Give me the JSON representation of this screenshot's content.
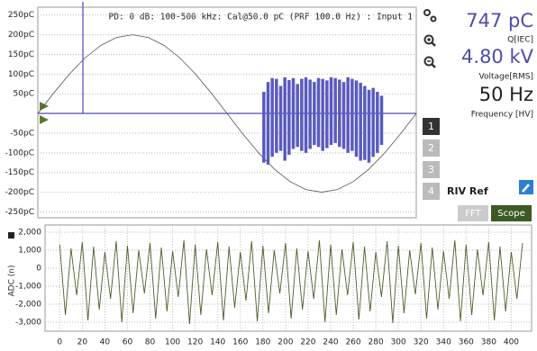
{
  "header": "PD: 0 dB: 100-500 kHz: Cal@50.0 pC (PRF 100.0 Hz) : Input 1",
  "readouts": [
    {
      "value": "747 pC",
      "label": "Q[IEC]"
    },
    {
      "value": "4.80 kV",
      "label": "Voltage[RMS]"
    },
    {
      "value": "50 Hz",
      "label": "Frequency [HV]"
    }
  ],
  "channels": [
    "1",
    "2",
    "3",
    "4"
  ],
  "riv_label": "RIV Ref",
  "buttons": [
    "FFT",
    "Scope"
  ],
  "chart_data": [
    {
      "type": "line",
      "xlim": [
        0,
        360
      ],
      "ylim": [
        -265,
        270
      ],
      "grid": true,
      "yticks": [
        {
          "value": 250,
          "label": "250pC"
        },
        {
          "value": 200,
          "label": "200pC"
        },
        {
          "value": 150,
          "label": "150pC"
        },
        {
          "value": 100,
          "label": "100pC"
        },
        {
          "value": 50,
          "label": "50pC"
        },
        {
          "value": -50,
          "label": "-50pC"
        },
        {
          "value": -100,
          "label": "-100pC"
        },
        {
          "value": -150,
          "label": "-150pC"
        },
        {
          "value": -200,
          "label": "-200pC"
        },
        {
          "value": -250,
          "label": "-250pC"
        }
      ],
      "series": [
        {
          "type": "line",
          "color": "#555555",
          "x": [
            0,
            15,
            30,
            45,
            60,
            75,
            90,
            105,
            120,
            135,
            150,
            165,
            180,
            195,
            210,
            225,
            240,
            255,
            270,
            285,
            300,
            315,
            330,
            345,
            360
          ],
          "values": [
            0,
            51.8,
            100,
            141.4,
            173.2,
            193.2,
            200,
            193.2,
            173.2,
            141.4,
            100,
            51.8,
            0,
            -51.8,
            -100,
            -141.4,
            -173.2,
            -193.2,
            -200,
            -193.2,
            -173.2,
            -141.4,
            -100,
            -51.8,
            0
          ]
        },
        {
          "type": "stem",
          "color": "#5a5ac0",
          "x": [
            215,
            219,
            223,
            227,
            231,
            235,
            239,
            243,
            247,
            251,
            255,
            259,
            263,
            267,
            271,
            275,
            279,
            283,
            287,
            291,
            295,
            299,
            303,
            307,
            311,
            315,
            319,
            323,
            327
          ],
          "values": [
            55,
            80,
            90,
            88,
            70,
            92,
            85,
            90,
            75,
            88,
            92,
            86,
            80,
            90,
            88,
            84,
            92,
            90,
            86,
            80,
            92,
            88,
            84,
            78,
            70,
            60,
            65,
            55,
            45
          ]
        },
        {
          "type": "stem",
          "color": "#5a5ac0",
          "x": [
            215,
            219,
            223,
            227,
            231,
            235,
            239,
            243,
            247,
            251,
            255,
            259,
            263,
            267,
            271,
            275,
            279,
            283,
            287,
            291,
            295,
            299,
            303,
            307,
            311,
            315,
            319,
            323,
            327
          ],
          "values": [
            -125,
            -130,
            -110,
            -100,
            -95,
            -120,
            -105,
            -90,
            -85,
            -95,
            -100,
            -90,
            -80,
            -85,
            -95,
            -88,
            -80,
            -75,
            -85,
            -90,
            -100,
            -95,
            -110,
            -120,
            -118,
            -125,
            -110,
            -100,
            -80
          ]
        }
      ]
    },
    {
      "type": "line",
      "xlim": [
        -13,
        418
      ],
      "ylim": [
        -3500,
        2400
      ],
      "grid": true,
      "ylabel": "ADC (n)",
      "xticks": [
        0,
        20,
        40,
        60,
        80,
        100,
        120,
        140,
        160,
        180,
        200,
        220,
        240,
        260,
        280,
        300,
        320,
        340,
        360,
        380,
        400
      ],
      "yticks": [
        {
          "value": 2000,
          "label": "2,000"
        },
        {
          "value": 1000,
          "label": "1,000"
        },
        0,
        {
          "value": -1000,
          "label": "-1,000"
        },
        {
          "value": -2000,
          "label": "-2,000"
        },
        {
          "value": -3000,
          "label": "-3,000"
        }
      ],
      "series": [
        {
          "type": "line",
          "color": "#4a5e2a",
          "x": [
            0,
            5,
            10,
            15,
            20,
            25,
            30,
            35,
            40,
            45,
            50,
            55,
            60,
            65,
            70,
            75,
            80,
            85,
            90,
            95,
            100,
            105,
            110,
            115,
            120,
            125,
            130,
            135,
            140,
            145,
            150,
            155,
            160,
            165,
            170,
            175,
            180,
            185,
            190,
            195,
            200,
            205,
            210,
            215,
            220,
            225,
            230,
            235,
            240,
            245,
            250,
            255,
            260,
            265,
            270,
            275,
            280,
            285,
            290,
            295,
            300,
            305,
            310,
            315,
            320,
            325,
            330,
            335,
            340,
            345,
            350,
            355,
            360,
            365,
            370,
            375,
            380,
            385,
            390,
            395,
            400,
            405,
            410
          ],
          "values": [
            1300,
            -2600,
            1100,
            -1500,
            1450,
            -2900,
            1200,
            -2300,
            900,
            -1700,
            1500,
            -3000,
            1250,
            -2500,
            1000,
            -1400,
            1400,
            -2800,
            1150,
            -2400,
            950,
            -1600,
            1550,
            -3100,
            1300,
            -2600,
            1050,
            -1500,
            1450,
            -2900,
            1200,
            -2200,
            900,
            -1800,
            1500,
            -2950,
            1250,
            -2500,
            1000,
            -1400,
            1400,
            -2800,
            1100,
            -2300,
            950,
            -1700,
            1550,
            -3000,
            1300,
            -2600,
            1050,
            -1500,
            1450,
            -2850,
            1200,
            -2400,
            900,
            -1600,
            1500,
            -3050,
            1250,
            -2500,
            1000,
            -1450,
            1400,
            -2800,
            1150,
            -2300,
            950,
            -1700,
            1550,
            -2950,
            1300,
            -2600,
            1050,
            -1500,
            1450,
            -2900,
            1200,
            -2400,
            900,
            -1700,
            1400
          ]
        }
      ]
    }
  ]
}
